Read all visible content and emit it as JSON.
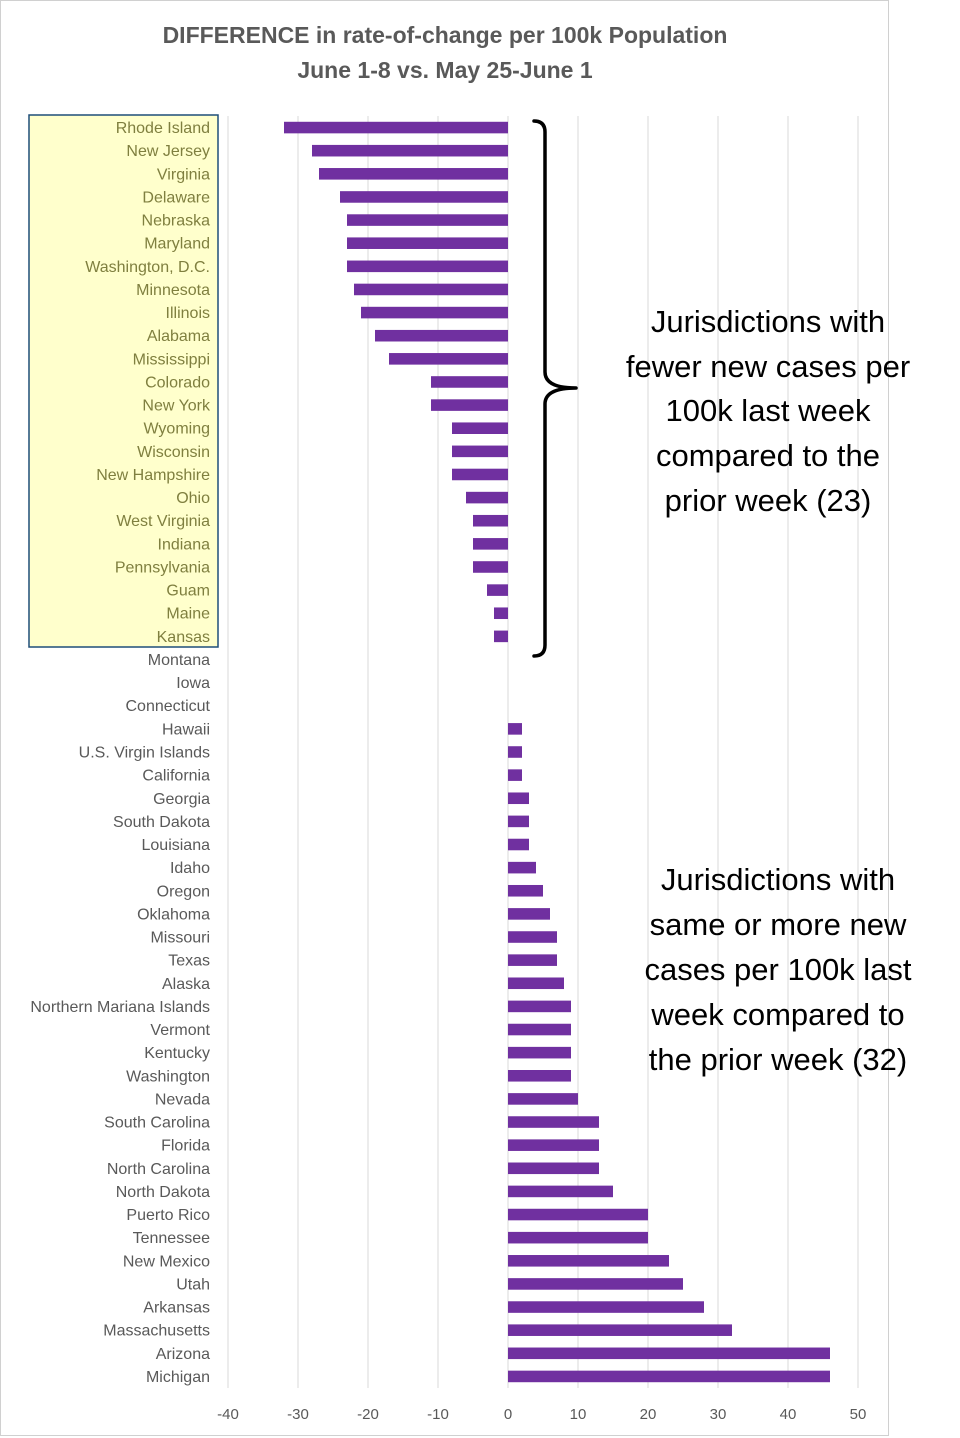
{
  "chart_data": {
    "type": "bar",
    "orientation": "horizontal",
    "title": "DIFFERENCE in rate-of-change per 100k Population",
    "subtitle": "June 1-8 vs. May 25-June 1",
    "categories": [
      "Rhode Island",
      "New Jersey",
      "Virginia",
      "Delaware",
      "Nebraska",
      "Maryland",
      "Washington, D.C.",
      "Minnesota",
      "Illinois",
      "Alabama",
      "Mississippi",
      "Colorado",
      "New York",
      "Wyoming",
      "Wisconsin",
      "New Hampshire",
      "Ohio",
      "West Virginia",
      "Indiana",
      "Pennsylvania",
      "Guam",
      "Maine",
      "Kansas",
      "Montana",
      "Iowa",
      "Connecticut",
      "Hawaii",
      "U.S. Virgin Islands",
      "California",
      "Georgia",
      "South Dakota",
      "Louisiana",
      "Idaho",
      "Oregon",
      "Oklahoma",
      "Missouri",
      "Texas",
      "Alaska",
      "Northern Mariana Islands",
      "Vermont",
      "Kentucky",
      "Washington",
      "Nevada",
      "South Carolina",
      "Florida",
      "North Carolina",
      "North Dakota",
      "Puerto Rico",
      "Tennessee",
      "New Mexico",
      "Utah",
      "Arkansas",
      "Massachusetts",
      "Arizona",
      "Michigan"
    ],
    "values": [
      -32,
      -28,
      -27,
      -24,
      -23,
      -23,
      -23,
      -22,
      -21,
      -19,
      -17,
      -11,
      -11,
      -8,
      -8,
      -8,
      -6,
      -5,
      -5,
      -5,
      -3,
      -2,
      -2,
      0,
      0,
      0,
      2,
      2,
      2,
      3,
      3,
      3,
      4,
      5,
      6,
      7,
      7,
      8,
      9,
      9,
      9,
      9,
      10,
      13,
      13,
      13,
      15,
      20,
      20,
      23,
      25,
      28,
      32,
      46,
      46
    ],
    "xlim": [
      -40,
      50
    ],
    "xticks": [
      -40,
      -30,
      -20,
      -10,
      0,
      10,
      20,
      30,
      40,
      50
    ],
    "grid": true,
    "bar_color": "#7030a0",
    "highlight_count": 23,
    "highlight_fill": "#ffffcc",
    "highlight_border": "#1f4e79",
    "highlight_label_color": "#7f7f3f",
    "label_color": "#595959",
    "annotations": [
      {
        "lines": [
          "Jurisdictions with",
          "fewer new cases per",
          "100k last week",
          "compared to the",
          "prior week (23)"
        ]
      },
      {
        "lines": [
          "Jurisdictions with",
          "same or more new",
          "cases per 100k last",
          "week compared to",
          "the prior week (32)"
        ]
      }
    ]
  }
}
